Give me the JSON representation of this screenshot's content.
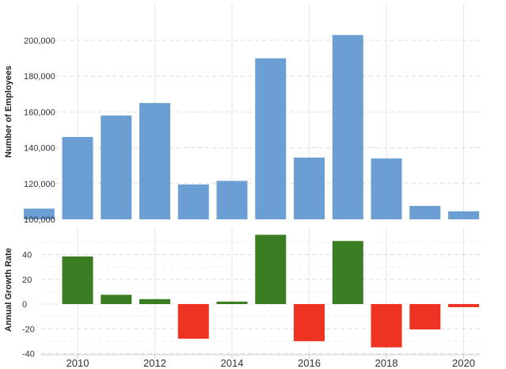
{
  "chart_data": [
    {
      "type": "bar",
      "ylabel": "Number of Employees",
      "x": [
        2009,
        2010,
        2011,
        2012,
        2013,
        2014,
        2015,
        2016,
        2017,
        2018,
        2019,
        2020
      ],
      "values": [
        106000,
        146000,
        158000,
        165000,
        119500,
        121500,
        190000,
        134500,
        203000,
        134000,
        107500,
        104500
      ],
      "ylim": [
        100000,
        210000
      ],
      "yticks": [
        100000,
        120000,
        140000,
        160000,
        180000,
        200000
      ],
      "ytick_labels": [
        "100,000",
        "120,000",
        "140,000",
        "160,000",
        "180,000",
        "200,000"
      ],
      "color": "#6b9fd4",
      "grid": true
    },
    {
      "type": "bar",
      "ylabel": "Annual Growth Rate",
      "x": [
        2010,
        2011,
        2012,
        2013,
        2014,
        2015,
        2016,
        2017,
        2018,
        2019,
        2020
      ],
      "values": [
        38.5,
        7.5,
        4,
        -28,
        2,
        56,
        -30,
        51,
        -35,
        -20.5,
        -2.5
      ],
      "ylim": [
        -44,
        62
      ],
      "yticks": [
        -40,
        -20,
        0,
        20,
        40
      ],
      "ytick_labels": [
        "-40",
        "-20",
        "0",
        "20",
        "40"
      ],
      "positive_color": "#3a7d22",
      "negative_color": "#ee3322",
      "grid": true
    }
  ],
  "x_axis": {
    "ticks": [
      2010,
      2012,
      2014,
      2016,
      2018,
      2020
    ],
    "tick_labels": [
      "2010",
      "2012",
      "2014",
      "2016",
      "2018",
      "2020"
    ]
  }
}
